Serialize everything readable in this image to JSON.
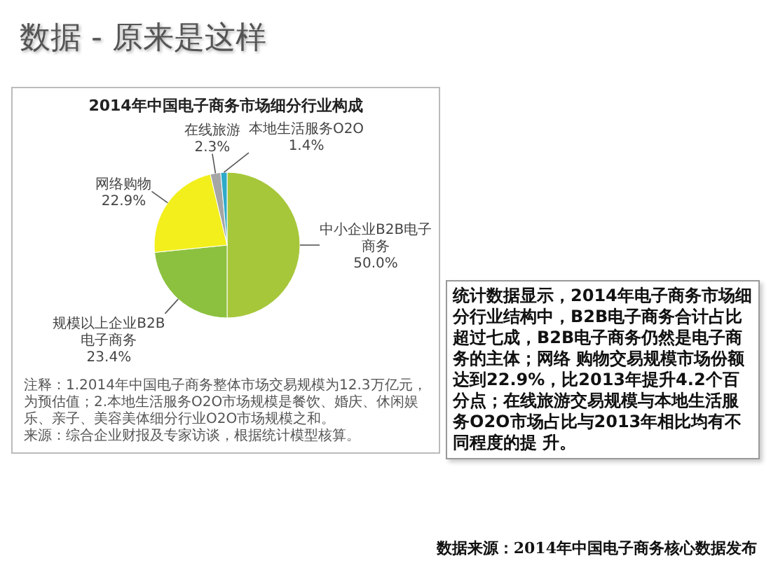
{
  "chart_data": [
    {
      "type": "pie",
      "title": "2014年中国电子商务市场细分行业构成",
      "categories": [
        "中小企业B2B电子商务",
        "规模以上企业B2B电子商务",
        "网络购物",
        "在线旅游",
        "本地生活服务O2O"
      ],
      "values": [
        50.0,
        23.4,
        22.9,
        2.3,
        1.4
      ],
      "value_labels": [
        "50.0%",
        "23.4%",
        "22.9%",
        "2.3%",
        "1.4%"
      ],
      "colors": [
        "#a6c73a",
        "#8cc13f",
        "#f2ef1c",
        "#a6a6a6",
        "#2fa9c9"
      ],
      "annotations": [
        "注释：1.2014年中国电子商务整体市场交易规模为12.3万亿元，为预估值；2.本地生活服务O2O市场规模是餐饮、婚庆、休闲娱乐、亲子、美容美体细分行业O2O市场规模之和。",
        "来源：综合企业财报及专家访谈，根据统计模型核算。"
      ]
    },
    {
      "type": "other",
      "title": "数据 - 原来是这样",
      "annotations": [
        "统计数据显示，2014年电子商务市场细分行业结构中，B2B电子商务合计占比超过七成，B2B电子商务仍然是电子商务的主体；网络 购物交易规模市场份额达到22.9%，比2013年提升4.2个百分点；在线旅游交易规模与本地生活服务O2O市场占比与2013年相比均有不同程度的提 升。",
        "数据来源：2014年中国电子商务核心数据发布"
      ]
    }
  ]
}
